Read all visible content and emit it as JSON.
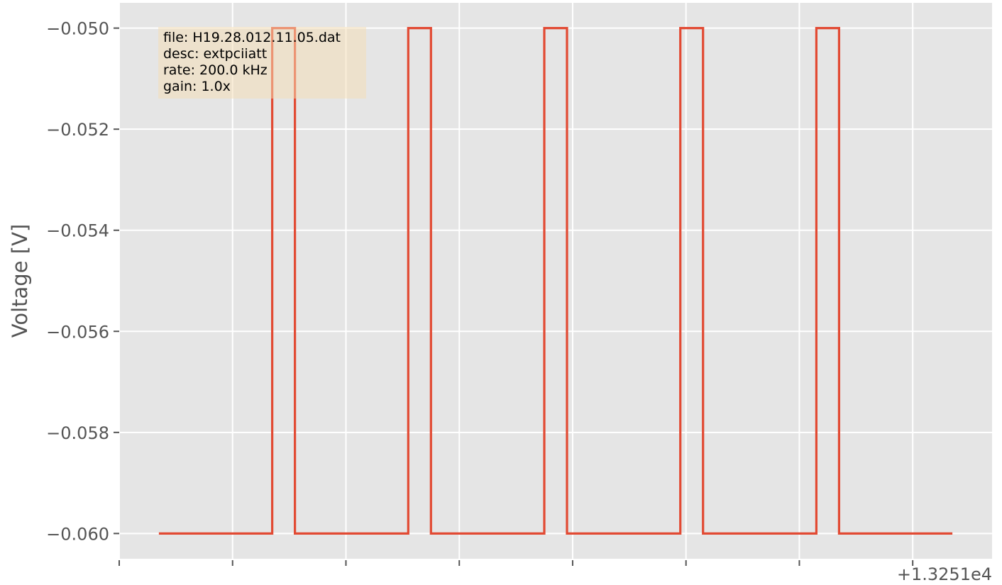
{
  "chart_data": {
    "type": "line",
    "ylabel": "Voltage [V]",
    "xlabel": "",
    "x_offset_label": "+1.3251e4",
    "ylim": [
      -0.0605,
      -0.0495
    ],
    "xlim": [
      0.0,
      0.0154
    ],
    "yticks": [
      -0.06,
      -0.058,
      -0.056,
      -0.054,
      -0.052,
      -0.05
    ],
    "ytick_labels": [
      "−0.060",
      "−0.058",
      "−0.056",
      "−0.054",
      "−0.052",
      "−0.050"
    ],
    "xticks": [
      0.0,
      0.002,
      0.004,
      0.006,
      0.008,
      0.01,
      0.012,
      0.014
    ],
    "grid": true,
    "series": [
      {
        "color": "#E24A33",
        "x": [
          0.0007,
          0.0027,
          0.0027,
          0.0031,
          0.0031,
          0.0051,
          0.0051,
          0.0055,
          0.0055,
          0.0075,
          0.0075,
          0.0079,
          0.0079,
          0.0099,
          0.0099,
          0.0103,
          0.0103,
          0.0123,
          0.0123,
          0.0127,
          0.0127,
          0.0147
        ],
        "values": [
          -0.06,
          -0.06,
          -0.05,
          -0.05,
          -0.06,
          -0.06,
          -0.05,
          -0.05,
          -0.06,
          -0.06,
          -0.05,
          -0.05,
          -0.06,
          -0.06,
          -0.05,
          -0.05,
          -0.06,
          -0.06,
          -0.05,
          -0.05,
          -0.06,
          -0.06
        ]
      }
    ],
    "annotation": {
      "lines": [
        "file: H19.28.012.11.05.dat",
        "desc: extpciiatt",
        "rate: 200.0 kHz",
        "gain: 1.0x"
      ],
      "background": "#F5DEB3"
    }
  },
  "colors": {
    "plot_background": "#E5E5E5",
    "grid": "#FFFFFF",
    "line": "#E24A33",
    "tick": "#555555"
  }
}
